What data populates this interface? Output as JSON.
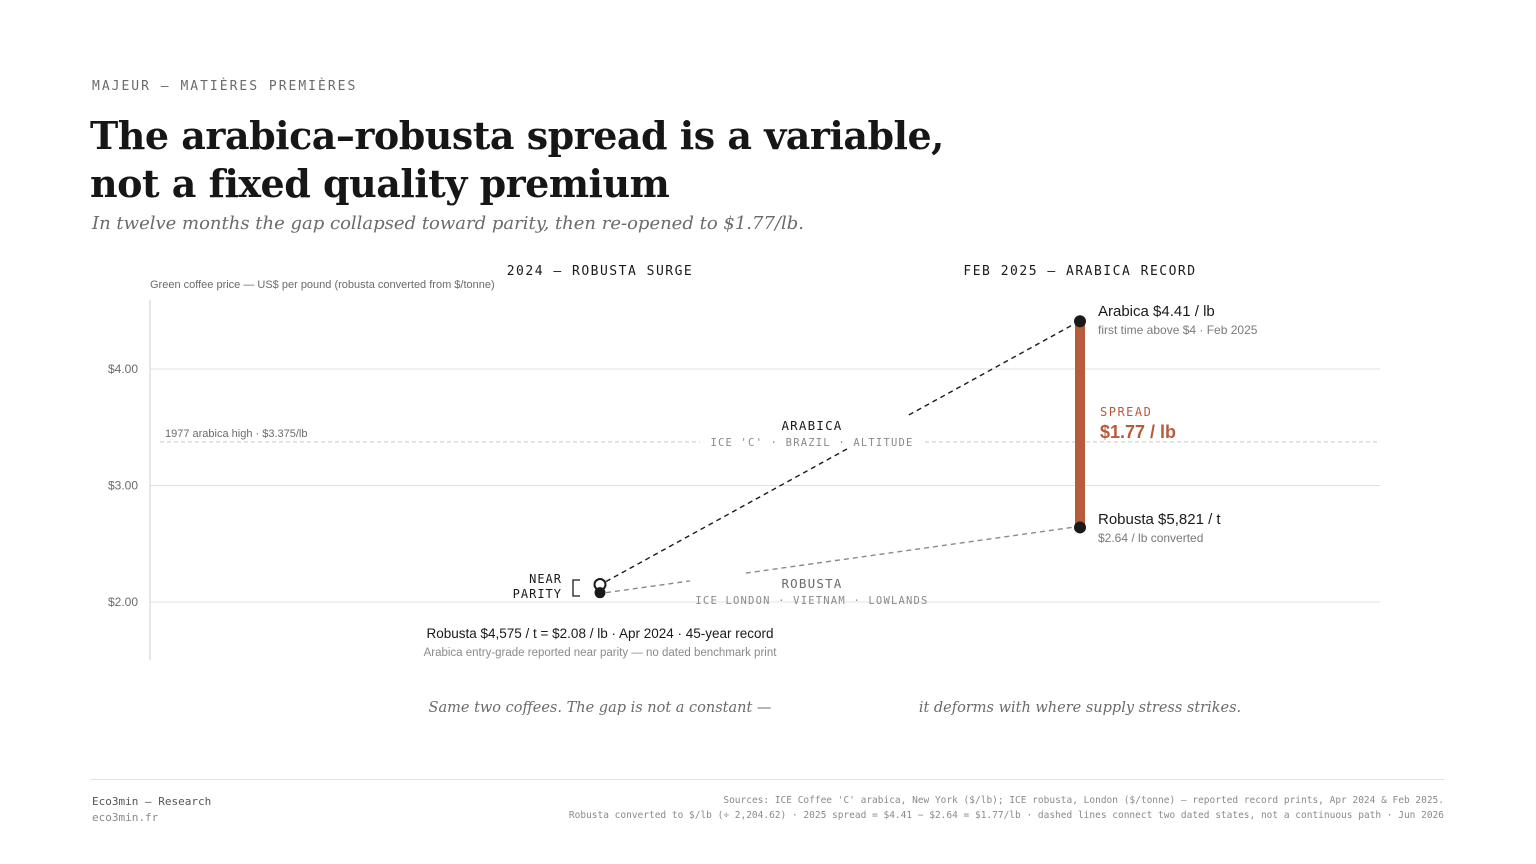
{
  "header": {
    "kicker": "MAJEUR — MATIÈRES PREMIÈRES",
    "title_line1": "The arabica–robusta spread is a variable,",
    "title_line2": "not a fixed quality premium",
    "subtitle": "In twelve months the gap collapsed toward parity, then re-opened to $1.77/lb."
  },
  "chart_data": {
    "type": "scatter",
    "title": "",
    "ylabel": "Green coffee price — US$ per pound (robusta converted from $/tonne)",
    "ylim": [
      1.5,
      4.6
    ],
    "yticks": [
      {
        "value": 2.0,
        "label": "$2.00"
      },
      {
        "value": 3.0,
        "label": "$3.00"
      },
      {
        "value": 4.0,
        "label": "$4.00"
      }
    ],
    "periods": [
      {
        "label": "2024 — ROBUSTA SURGE"
      },
      {
        "label": "FEB 2025 — ARABICA RECORD"
      }
    ],
    "reference_line": {
      "value": 3.375,
      "label": "1977 arabica high · $3.375/lb"
    },
    "series": [
      {
        "name": "ARABICA",
        "sublabel": "ICE 'C' · BRAZIL · ALTITUDE",
        "values": [
          2.15,
          4.41
        ]
      },
      {
        "name": "ROBUSTA",
        "sublabel": "ICE LONDON · VIETNAM · LOWLANDS",
        "values": [
          2.08,
          2.64
        ]
      }
    ],
    "near_parity_label": [
      "NEAR",
      "PARITY"
    ],
    "point_2024_label": "Robusta $4,575 / t = $2.08 / lb · Apr 2024 · 45-year record",
    "point_2024_note": "Arabica entry-grade reported near parity — no dated benchmark print",
    "arabica_2025_label": "Arabica $4.41 / lb",
    "arabica_2025_note": "first time above $4 · Feb 2025",
    "robusta_2025_label": "Robusta $5,821 / t",
    "robusta_2025_note": "$2.64 / lb converted",
    "spread_label": "SPREAD",
    "spread_value": "$1.77 / lb",
    "caption_left": "Same two coffees. The gap is not a constant —",
    "caption_right": "it deforms with where supply stress strikes.",
    "colors": {
      "spread": "#b85a3c",
      "arabica": "#1a1a1a",
      "robusta": "#8a8a8a",
      "grid": "#dcdcdc"
    }
  },
  "footer": {
    "brand": "Eco3min — Research",
    "url": "eco3min.fr",
    "sources_line1": "Sources: ICE Coffee 'C' arabica, New York ($/lb); ICE robusta, London ($/tonne) — reported record prints, Apr 2024 & Feb 2025.",
    "sources_line2": "Robusta converted to $/lb (÷ 2,204.62) · 2025 spread = $4.41 − $2.64 = $1.77/lb · dashed lines connect two dated states, not a continuous path · Jun 2026"
  }
}
